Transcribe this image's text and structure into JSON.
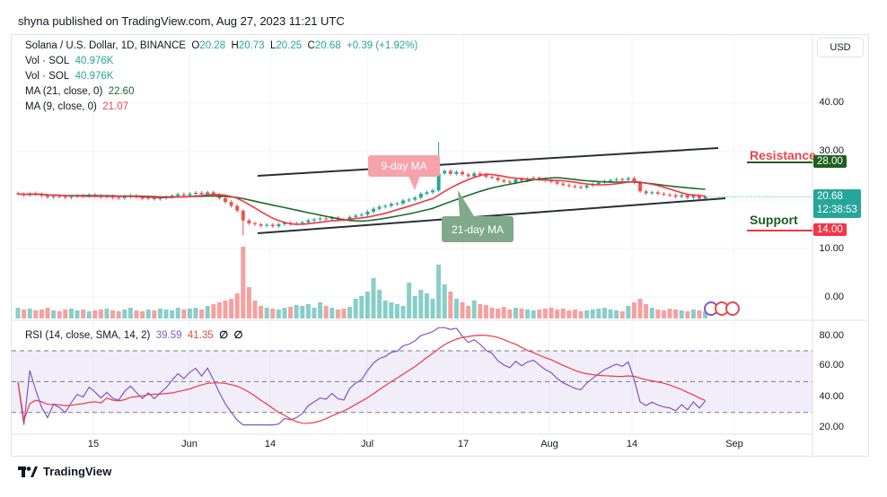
{
  "published": "shyna published on TradingView.com, Aug 27, 2023 11:21 UTC",
  "footer": {
    "brand": "TradingView",
    "logo": "17"
  },
  "currency_button": "USD",
  "legend": {
    "symbol": "Solana / U.S. Dollar, 1D, BINANCE",
    "o_label": "O",
    "o": "20.28",
    "h_label": "H",
    "h": "20.73",
    "l_label": "L",
    "l": "20.25",
    "c_label": "C",
    "c": "20.68",
    "change": "+0.39 (+1.92%)",
    "vol1_label": "Vol · SOL",
    "vol1": "40.976K",
    "vol2_label": "Vol · SOL",
    "vol2": "40.976K",
    "ma21_label": "MA (21, close, 0)",
    "ma21": "22.60",
    "ma9_label": "MA (9, close, 0)",
    "ma9": "21.07",
    "rsi_label": "RSI (14, close, SMA, 14, 2)",
    "rsi": "39.59",
    "rsi_sma": "41.35",
    "rsi_na1": "∅",
    "rsi_na2": "∅"
  },
  "annotations": {
    "ma9_label": "9-day MA",
    "ma21_label": "21-day MA",
    "resistance": "Resistance",
    "resistance_value": "28.00",
    "support": "Support",
    "support_value": "14.00",
    "last_price": "20.68",
    "countdown": "12:38:53"
  },
  "colors": {
    "up": "#26a69a",
    "down": "#ef5350",
    "ma9": "#f23645",
    "ma21": "#1e6b2a",
    "rsi": "#7e57c2",
    "rsi_sma": "#f23645",
    "resistance": "#1e5e20",
    "support": "#f23645"
  },
  "chart_data": [
    {
      "type": "candlestick",
      "start_date": "2023-05-03",
      "interval": "1D",
      "price_axis_ticks": [
        "40.00",
        "30.00",
        "10.00",
        "0.00"
      ],
      "time_axis_ticks": [
        "15",
        "Jun",
        "14",
        "Jul",
        "17",
        "Aug",
        "14",
        "Sep"
      ],
      "close": [
        21.3,
        21.0,
        21.4,
        21.2,
        20.9,
        20.6,
        20.8,
        20.7,
        20.5,
        20.7,
        20.9,
        20.8,
        21.1,
        20.9,
        20.6,
        20.8,
        20.5,
        20.4,
        20.7,
        20.9,
        20.6,
        20.3,
        20.5,
        20.2,
        20.4,
        20.6,
        20.9,
        21.2,
        21.0,
        21.3,
        21.5,
        21.2,
        21.6,
        21.1,
        20.4,
        19.6,
        18.8,
        17.8,
        15.8,
        15.2,
        15.0,
        14.7,
        14.9,
        14.6,
        15.0,
        15.3,
        15.1,
        15.2,
        15.4,
        15.8,
        16.0,
        16.2,
        16.1,
        16.4,
        16.0,
        15.9,
        16.5,
        16.8,
        17.0,
        17.6,
        18.2,
        18.6,
        18.8,
        19.2,
        19.3,
        19.9,
        20.1,
        20.5,
        21.3,
        21.6,
        22.0,
        25.5,
        26.0,
        25.4,
        25.8,
        25.3,
        24.9,
        25.5,
        25.2,
        24.8,
        24.6,
        24.1,
        23.8,
        23.6,
        24.3,
        24.0,
        24.4,
        24.6,
        24.3,
        24.0,
        23.8,
        23.4,
        23.1,
        22.9,
        22.7,
        22.6,
        23.0,
        23.3,
        23.6,
        23.9,
        24.1,
        24.3,
        24.2,
        24.5,
        23.6,
        21.8,
        21.4,
        21.6,
        21.3,
        21.1,
        21.0,
        20.7,
        21.0,
        20.5,
        20.9,
        20.3,
        20.68
      ],
      "notable_wicks": {
        "2023-06-10": {
          "low": 12.7
        },
        "2023-07-13": {
          "high": 32.0
        }
      },
      "volume_relative": [
        12,
        10,
        11,
        9,
        10,
        12,
        9,
        8,
        10,
        11,
        9,
        10,
        8,
        9,
        10,
        11,
        9,
        8,
        10,
        12,
        9,
        8,
        10,
        9,
        11,
        10,
        9,
        12,
        10,
        11,
        12,
        10,
        14,
        16,
        18,
        20,
        22,
        28,
        80,
        35,
        20,
        14,
        12,
        11,
        10,
        12,
        13,
        15,
        14,
        16,
        12,
        18,
        14,
        12,
        10,
        11,
        13,
        22,
        25,
        30,
        45,
        32,
        20,
        18,
        16,
        14,
        40,
        25,
        32,
        28,
        22,
        60,
        38,
        30,
        22,
        18,
        14,
        20,
        16,
        15,
        12,
        11,
        13,
        10,
        12,
        11,
        10,
        9,
        10,
        11,
        12,
        10,
        11,
        9,
        10,
        8,
        9,
        10,
        11,
        12,
        10,
        9,
        8,
        14,
        18,
        22,
        16,
        12,
        10,
        9,
        11,
        10,
        9,
        8,
        10,
        9,
        8
      ],
      "trendlines": [
        {
          "from": [
            "2023-06-12",
            25.0
          ],
          "to": [
            "2023-08-29",
            30.5
          ]
        },
        {
          "from": [
            "2023-06-12",
            13.0
          ],
          "to": [
            "2023-08-30",
            20.2
          ]
        }
      ]
    },
    {
      "type": "line",
      "name": "RSI",
      "y_axis_ticks": [
        "80.00",
        "60.00",
        "40.00",
        "20.00"
      ],
      "band": [
        30,
        70
      ],
      "ylim": [
        20,
        85
      ]
    }
  ]
}
